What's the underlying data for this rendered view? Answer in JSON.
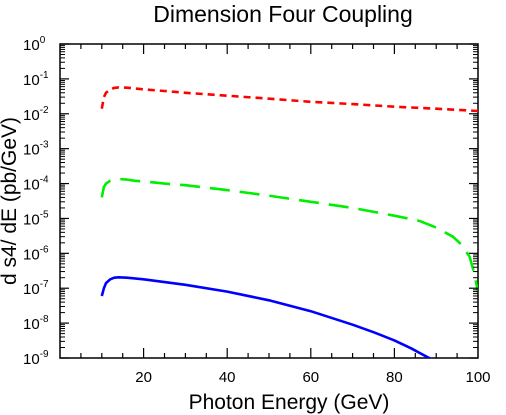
{
  "chart_data": {
    "type": "line",
    "title": "Dimension Four Coupling",
    "xlabel": "Photon Energy (GeV)",
    "ylabel": "d s4/ dE (pb/GeV)",
    "xlim": [
      0,
      100
    ],
    "ylim": [
      1e-09,
      1
    ],
    "yscale": "log",
    "x_ticks": [
      20,
      40,
      60,
      80,
      100
    ],
    "x_tick_labels": [
      "20",
      "40",
      "60",
      "80",
      "100"
    ],
    "y_ticks": [
      1,
      0.1,
      0.01,
      0.001,
      0.0001,
      1e-05,
      1e-06,
      1e-07,
      1e-08,
      1e-09
    ],
    "y_tick_labels": [
      {
        "base": "10",
        "exp": "0"
      },
      {
        "base": "10",
        "exp": "-1"
      },
      {
        "base": "10",
        "exp": "-2"
      },
      {
        "base": "10",
        "exp": "-3"
      },
      {
        "base": "10",
        "exp": "-4"
      },
      {
        "base": "10",
        "exp": "-5"
      },
      {
        "base": "10",
        "exp": "-6"
      },
      {
        "base": "10",
        "exp": "-7"
      },
      {
        "base": "10",
        "exp": "-8"
      },
      {
        "base": "10",
        "exp": "-9"
      }
    ],
    "grid": false,
    "series": [
      {
        "color": "#ff0000",
        "dash": "short",
        "x": [
          10,
          10.5,
          11,
          12,
          13,
          14,
          16,
          18,
          20,
          25,
          30,
          40,
          50,
          60,
          70,
          80,
          90,
          100
        ],
        "y": [
          0.014,
          0.03,
          0.04,
          0.05,
          0.055,
          0.057,
          0.056,
          0.053,
          0.05,
          0.045,
          0.04,
          0.033,
          0.027,
          0.022,
          0.019,
          0.016,
          0.014,
          0.012
        ]
      },
      {
        "color": "#00ee00",
        "dash": "long",
        "x": [
          10,
          10.5,
          11,
          12,
          13,
          14,
          16,
          18,
          20,
          25,
          30,
          40,
          50,
          60,
          70,
          80,
          86,
          90,
          94,
          96,
          98,
          99,
          100
        ],
        "y": [
          4e-05,
          8e-05,
          0.0001,
          0.00012,
          0.00013,
          0.000135,
          0.00013,
          0.00012,
          0.000115,
          0.0001,
          9e-05,
          6.5e-05,
          4.5e-05,
          3e-05,
          2e-05,
          1.2e-05,
          8.5e-06,
          5.5e-06,
          3e-06,
          1.8e-06,
          8e-07,
          3e-07,
          8e-08
        ]
      },
      {
        "color": "#0000ff",
        "dash": "solid",
        "x": [
          10,
          10.5,
          11,
          12,
          13,
          14,
          16,
          20,
          30,
          40,
          50,
          60,
          70,
          75,
          80,
          84,
          86,
          88,
          90
        ],
        "y": [
          6e-08,
          1e-07,
          1.4e-07,
          1.8e-07,
          2e-07,
          2.05e-07,
          2e-07,
          1.8e-07,
          1.25e-07,
          8e-08,
          4.5e-08,
          2.2e-08,
          9e-09,
          5.5e-09,
          3.2e-09,
          1.9e-09,
          1.4e-09,
          1.05e-09,
          8e-10
        ]
      }
    ]
  }
}
